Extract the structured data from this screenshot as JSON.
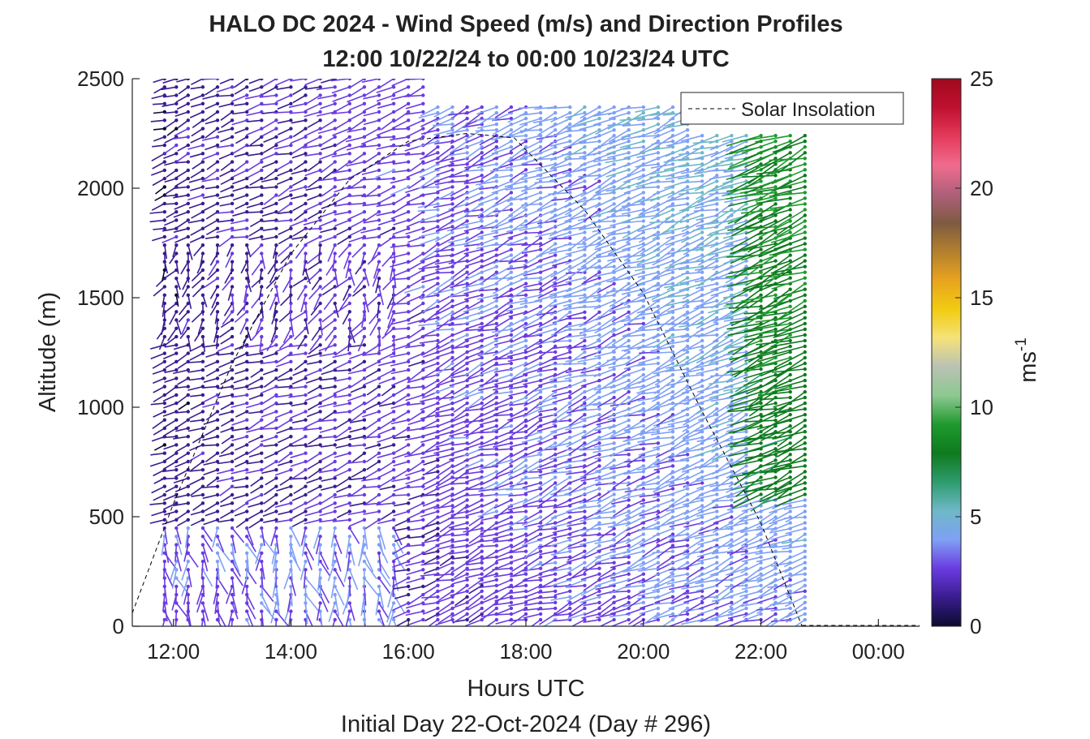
{
  "chart_data": {
    "type": "wind_barb_profile",
    "title": "HALO DC 2024 - Wind Speed (m/s) and Direction Profiles",
    "subtitle": "12:00 10/22/24 to 00:00 10/23/24  UTC",
    "xlabel": "Hours UTC",
    "xlabel2": "Initial Day 22-Oct-2024 (Day # 296)",
    "ylabel": "Altitude (m)",
    "x_unit": "hours UTC",
    "xlim": [
      11.3,
      24.7
    ],
    "ylim": [
      0,
      2500
    ],
    "x_ticks": [
      12,
      14,
      16,
      18,
      20,
      22,
      24
    ],
    "x_tick_labels": [
      "12:00",
      "14:00",
      "16:00",
      "18:00",
      "20:00",
      "22:00",
      "00:00"
    ],
    "y_ticks": [
      0,
      500,
      1000,
      1500,
      2000,
      2500
    ],
    "y_tick_labels": [
      "0",
      "500",
      "1000",
      "1500",
      "2000",
      "2500"
    ],
    "legend": {
      "entries": [
        "Solar Insolation"
      ],
      "placement": "top-right"
    },
    "colorbar": {
      "label": "ms",
      "label_superscript": "-1",
      "range": [
        0,
        25
      ],
      "ticks": [
        0,
        5,
        10,
        15,
        20,
        25
      ],
      "tick_labels": [
        "0",
        "5",
        "10",
        "15",
        "20",
        "25"
      ],
      "colors": [
        "#0b0b2e",
        "#3a1c8f",
        "#6a3be0",
        "#7fa0f5",
        "#6fb8c8",
        "#2e9c6e",
        "#0e7a1e",
        "#1f9a2e",
        "#8cc890",
        "#b9c2b4",
        "#f5e27a",
        "#f1cc12",
        "#e9a31f",
        "#b2802e",
        "#7f5a42",
        "#b0607a",
        "#f06b8e",
        "#e43a5a",
        "#c01030",
        "#9e0a1e"
      ]
    },
    "solar_insolation": {
      "name": "Solar Insolation",
      "x": [
        11.3,
        12.0,
        13.0,
        14.0,
        15.0,
        16.0,
        17.0,
        17.8,
        19.0,
        20.0,
        21.0,
        22.0,
        22.7,
        24.7
      ],
      "y": [
        60,
        560,
        1200,
        1700,
        2040,
        2215,
        2250,
        2230,
        1900,
        1520,
        980,
        470,
        0,
        0
      ]
    },
    "wind_profiles": {
      "times": [
        11.85,
        12.05,
        12.25,
        12.5,
        12.75,
        13.0,
        13.25,
        13.5,
        13.75,
        14.0,
        14.25,
        14.5,
        14.75,
        15.0,
        15.25,
        15.5,
        15.75,
        16.0,
        16.25,
        16.5,
        16.75,
        17.0,
        17.25,
        17.5,
        17.75,
        18.0,
        18.25,
        18.5,
        18.75,
        19.0,
        19.25,
        19.5,
        19.75,
        20.0,
        20.25,
        20.5,
        20.75,
        21.0,
        21.25,
        21.5,
        21.75,
        22.0,
        22.25,
        22.5,
        22.75
      ],
      "altitude_range": [
        30,
        2500
      ],
      "speed_range": [
        0.5,
        9
      ]
    }
  }
}
